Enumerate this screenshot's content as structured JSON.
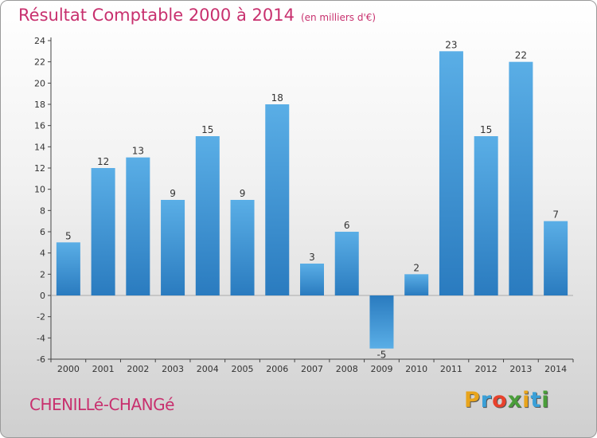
{
  "chart_data": {
    "type": "bar",
    "title": "Résultat Comptable 2000 à 2014",
    "subtitle": "(en milliers d'€)",
    "categories": [
      "2000",
      "2001",
      "2002",
      "2003",
      "2004",
      "2005",
      "2006",
      "2007",
      "2008",
      "2009",
      "2010",
      "2011",
      "2012",
      "2013",
      "2014"
    ],
    "values": [
      5,
      12,
      13,
      9,
      15,
      9,
      18,
      3,
      6,
      -5,
      2,
      23,
      15,
      22,
      7
    ],
    "ylim": [
      -6,
      24
    ],
    "yticks": [
      -6,
      -4,
      -2,
      0,
      2,
      4,
      6,
      8,
      10,
      12,
      14,
      16,
      18,
      20,
      22,
      24
    ],
    "grid": false,
    "xlabel": "",
    "ylabel": ""
  },
  "footer": {
    "commune": "CHENILLé-CHANGé",
    "brand_letters": [
      "P",
      "r",
      "o",
      "x",
      "i",
      "t",
      "i"
    ],
    "brand_colors": [
      "#e8a41c",
      "#3aa0d8",
      "#e8422c",
      "#4a9e3a",
      "#e8a41c",
      "#3aa0d8",
      "#4a9e3a"
    ]
  },
  "colors": {
    "bar_light": "#5aaee6",
    "bar_dark": "#2a7bbf",
    "title": "#c8306e",
    "axis": "#444444"
  }
}
